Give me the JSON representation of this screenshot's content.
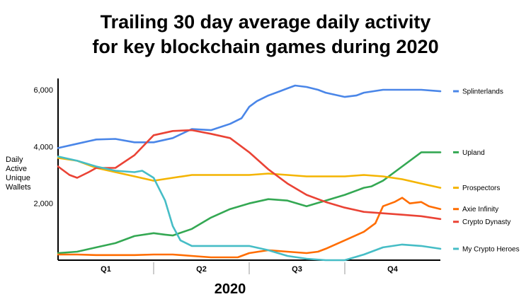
{
  "chart_data": {
    "type": "line",
    "title": [
      "Trailing 30 day average daily activity",
      "for key blockchain games during 2020"
    ],
    "xlabel": "2020",
    "ylabel": [
      "Daily",
      "Active",
      "Unique",
      "Wallets"
    ],
    "categories": [
      "Q1",
      "Q2",
      "Q3",
      "Q4"
    ],
    "yticks": [
      2000,
      4000,
      6000
    ],
    "ytick_labels": [
      "2,000",
      "4,000",
      "6,000"
    ],
    "ylim": [
      0,
      6300
    ],
    "xlim": [
      0,
      1
    ],
    "grid": false,
    "legend_position": "right",
    "series": [
      {
        "name": "Splinterlands",
        "color": "#4a86e8",
        "x": [
          0,
          0.05,
          0.1,
          0.15,
          0.2,
          0.25,
          0.3,
          0.35,
          0.4,
          0.45,
          0.48,
          0.5,
          0.52,
          0.55,
          0.58,
          0.6,
          0.62,
          0.65,
          0.68,
          0.7,
          0.75,
          0.78,
          0.8,
          0.85,
          0.9,
          0.95,
          1.0
        ],
        "y": [
          3950,
          4100,
          4250,
          4270,
          4150,
          4150,
          4300,
          4620,
          4580,
          4800,
          5000,
          5400,
          5600,
          5800,
          5950,
          6050,
          6150,
          6100,
          6000,
          5900,
          5750,
          5800,
          5900,
          6000,
          6000,
          6000,
          5950
        ]
      },
      {
        "name": "Upland",
        "color": "#34a853",
        "x": [
          0,
          0.05,
          0.1,
          0.15,
          0.2,
          0.25,
          0.28,
          0.3,
          0.35,
          0.4,
          0.45,
          0.5,
          0.55,
          0.6,
          0.65,
          0.7,
          0.75,
          0.8,
          0.82,
          0.85,
          0.9,
          0.95,
          1.0
        ],
        "y": [
          250,
          300,
          450,
          600,
          850,
          950,
          900,
          870,
          1100,
          1500,
          1800,
          2000,
          2150,
          2100,
          1900,
          2100,
          2300,
          2550,
          2600,
          2800,
          3300,
          3800,
          3800
        ]
      },
      {
        "name": "Prospectors",
        "color": "#f4b400",
        "x": [
          0,
          0.05,
          0.1,
          0.15,
          0.2,
          0.25,
          0.3,
          0.35,
          0.4,
          0.45,
          0.5,
          0.55,
          0.6,
          0.65,
          0.7,
          0.75,
          0.8,
          0.85,
          0.9,
          0.95,
          1.0
        ],
        "y": [
          3600,
          3500,
          3250,
          3100,
          2950,
          2800,
          2900,
          3000,
          3000,
          3000,
          3000,
          3050,
          3000,
          2950,
          2950,
          2950,
          3000,
          2950,
          2850,
          2700,
          2550
        ]
      },
      {
        "name": "Axie Infinity",
        "color": "#ff6d01",
        "x": [
          0,
          0.05,
          0.1,
          0.15,
          0.2,
          0.25,
          0.3,
          0.35,
          0.4,
          0.45,
          0.47,
          0.5,
          0.55,
          0.6,
          0.65,
          0.68,
          0.7,
          0.75,
          0.8,
          0.83,
          0.85,
          0.88,
          0.9,
          0.92,
          0.95,
          0.97,
          1.0
        ],
        "y": [
          200,
          200,
          180,
          180,
          180,
          200,
          200,
          150,
          100,
          100,
          100,
          250,
          350,
          300,
          250,
          300,
          400,
          700,
          1000,
          1300,
          1900,
          2050,
          2200,
          2000,
          2050,
          1900,
          1800
        ]
      },
      {
        "name": "Crypto Dynasty",
        "color": "#ea4335",
        "x": [
          0,
          0.03,
          0.05,
          0.08,
          0.1,
          0.15,
          0.2,
          0.25,
          0.3,
          0.35,
          0.4,
          0.45,
          0.5,
          0.55,
          0.6,
          0.65,
          0.7,
          0.75,
          0.8,
          0.85,
          0.9,
          0.95,
          1.0
        ],
        "y": [
          3300,
          3000,
          2900,
          3100,
          3250,
          3250,
          3700,
          4400,
          4550,
          4580,
          4450,
          4300,
          3800,
          3200,
          2700,
          2300,
          2050,
          1850,
          1700,
          1650,
          1600,
          1550,
          1450
        ]
      },
      {
        "name": "My Crypto Heroes",
        "color": "#46bdc6",
        "x": [
          0,
          0.05,
          0.1,
          0.15,
          0.2,
          0.22,
          0.25,
          0.28,
          0.3,
          0.32,
          0.35,
          0.4,
          0.45,
          0.5,
          0.55,
          0.6,
          0.65,
          0.7,
          0.75,
          0.8,
          0.85,
          0.9,
          0.95,
          1.0
        ],
        "y": [
          3650,
          3500,
          3300,
          3150,
          3100,
          3150,
          2900,
          2100,
          1200,
          700,
          500,
          500,
          500,
          500,
          350,
          150,
          50,
          0,
          0,
          200,
          450,
          550,
          500,
          400
        ]
      }
    ]
  }
}
